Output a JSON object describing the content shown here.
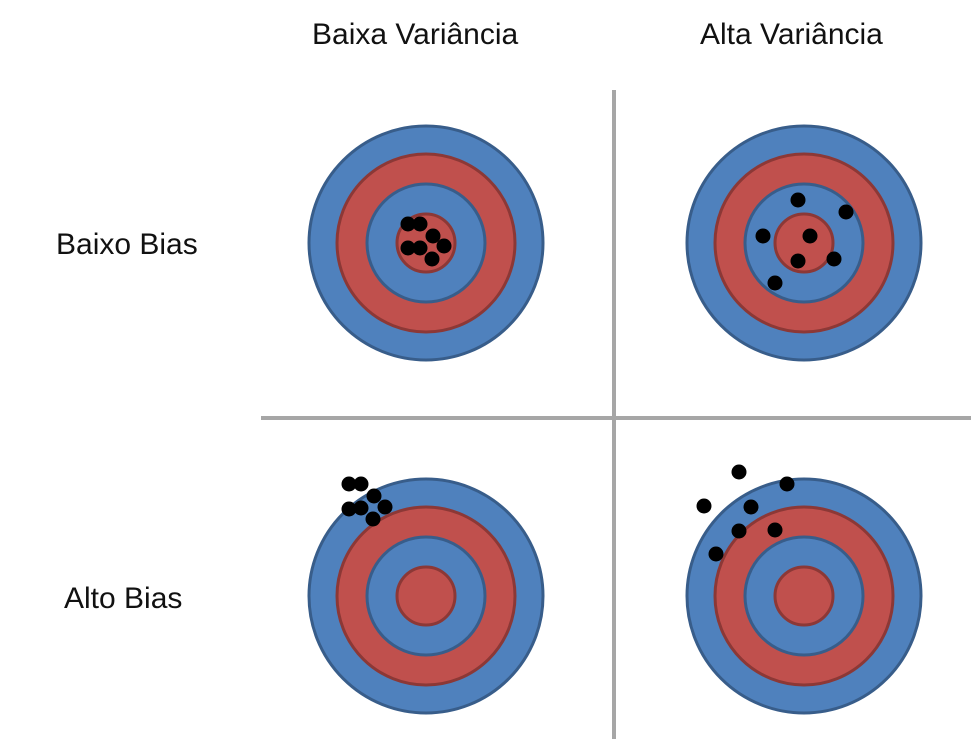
{
  "columns": {
    "low_variance": "Baixa Variância",
    "high_variance": "Alta Variância"
  },
  "rows": {
    "low_bias": "Baixo Bias",
    "high_bias": "Alto Bias"
  },
  "colors": {
    "blue_ring": "#4F81BD",
    "blue_stroke": "#385D8A",
    "red_ring": "#C0504D",
    "red_stroke": "#8C3836",
    "divider": "#A6A6A6",
    "shot": "#000000"
  }
}
